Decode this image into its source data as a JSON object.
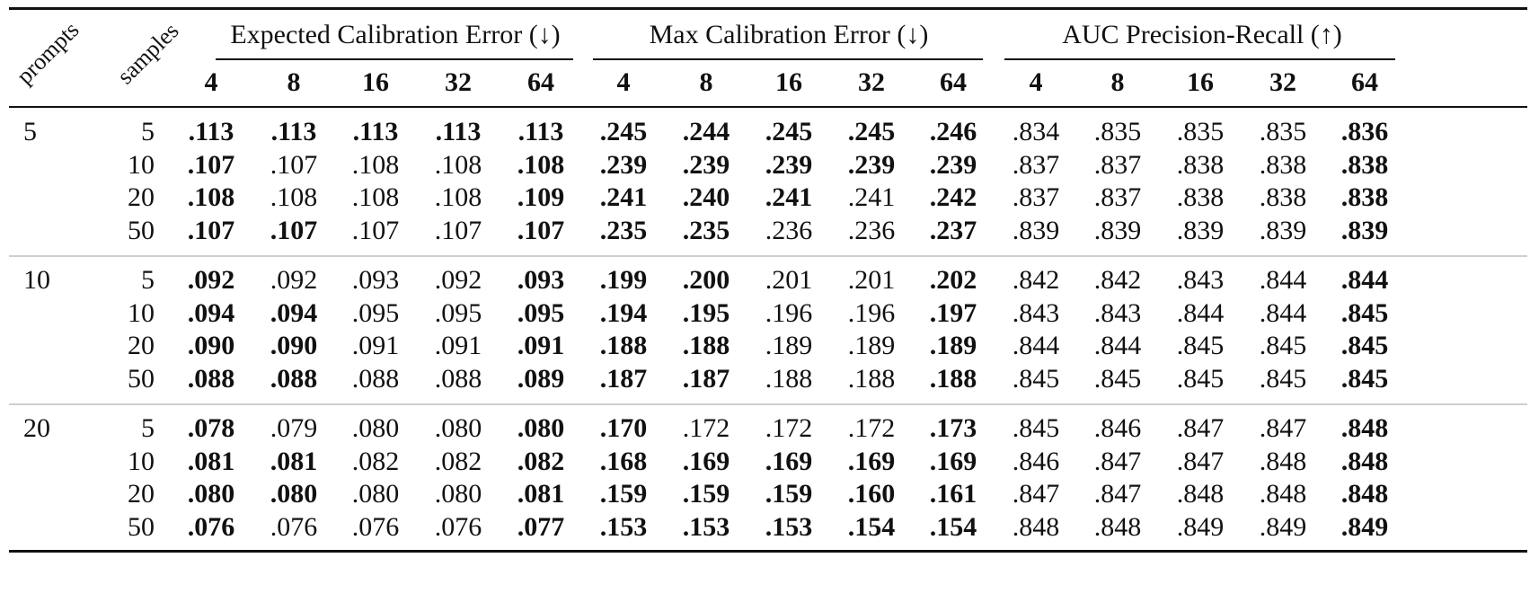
{
  "header": {
    "prompts_label": "prompts",
    "samples_label": "samples",
    "groups": [
      {
        "title": "Expected Calibration Error (↓)",
        "cols": [
          "4",
          "8",
          "16",
          "32",
          "64"
        ]
      },
      {
        "title": "Max Calibration Error (↓)",
        "cols": [
          "4",
          "8",
          "16",
          "32",
          "64"
        ]
      },
      {
        "title": "AUC Precision-Recall (↑)",
        "cols": [
          "4",
          "8",
          "16",
          "32",
          "64"
        ]
      }
    ]
  },
  "blocks": [
    {
      "prompts": "5",
      "rows": [
        {
          "samples": "5",
          "values": [
            ".113",
            ".113",
            ".113",
            ".113",
            ".113",
            ".245",
            ".244",
            ".245",
            ".245",
            ".246",
            ".834",
            ".835",
            ".835",
            ".835",
            ".836"
          ],
          "bold": [
            1,
            1,
            1,
            1,
            1,
            1,
            1,
            1,
            1,
            1,
            0,
            0,
            0,
            0,
            1
          ]
        },
        {
          "samples": "10",
          "values": [
            ".107",
            ".107",
            ".108",
            ".108",
            ".108",
            ".239",
            ".239",
            ".239",
            ".239",
            ".239",
            ".837",
            ".837",
            ".838",
            ".838",
            ".838"
          ],
          "bold": [
            1,
            0,
            0,
            0,
            1,
            1,
            1,
            1,
            1,
            1,
            0,
            0,
            0,
            0,
            1
          ]
        },
        {
          "samples": "20",
          "values": [
            ".108",
            ".108",
            ".108",
            ".108",
            ".109",
            ".241",
            ".240",
            ".241",
            ".241",
            ".242",
            ".837",
            ".837",
            ".838",
            ".838",
            ".838"
          ],
          "bold": [
            1,
            0,
            0,
            0,
            1,
            1,
            1,
            1,
            0,
            1,
            0,
            0,
            0,
            0,
            1
          ]
        },
        {
          "samples": "50",
          "values": [
            ".107",
            ".107",
            ".107",
            ".107",
            ".107",
            ".235",
            ".235",
            ".236",
            ".236",
            ".237",
            ".839",
            ".839",
            ".839",
            ".839",
            ".839"
          ],
          "bold": [
            1,
            1,
            0,
            0,
            1,
            1,
            1,
            0,
            0,
            1,
            0,
            0,
            0,
            0,
            1
          ]
        }
      ]
    },
    {
      "prompts": "10",
      "rows": [
        {
          "samples": "5",
          "values": [
            ".092",
            ".092",
            ".093",
            ".092",
            ".093",
            ".199",
            ".200",
            ".201",
            ".201",
            ".202",
            ".842",
            ".842",
            ".843",
            ".844",
            ".844"
          ],
          "bold": [
            1,
            0,
            0,
            0,
            1,
            1,
            1,
            0,
            0,
            1,
            0,
            0,
            0,
            0,
            1
          ]
        },
        {
          "samples": "10",
          "values": [
            ".094",
            ".094",
            ".095",
            ".095",
            ".095",
            ".194",
            ".195",
            ".196",
            ".196",
            ".197",
            ".843",
            ".843",
            ".844",
            ".844",
            ".845"
          ],
          "bold": [
            1,
            1,
            0,
            0,
            1,
            1,
            1,
            0,
            0,
            1,
            0,
            0,
            0,
            0,
            1
          ]
        },
        {
          "samples": "20",
          "values": [
            ".090",
            ".090",
            ".091",
            ".091",
            ".091",
            ".188",
            ".188",
            ".189",
            ".189",
            ".189",
            ".844",
            ".844",
            ".845",
            ".845",
            ".845"
          ],
          "bold": [
            1,
            1,
            0,
            0,
            1,
            1,
            1,
            0,
            0,
            1,
            0,
            0,
            0,
            0,
            1
          ]
        },
        {
          "samples": "50",
          "values": [
            ".088",
            ".088",
            ".088",
            ".088",
            ".089",
            ".187",
            ".187",
            ".188",
            ".188",
            ".188",
            ".845",
            ".845",
            ".845",
            ".845",
            ".845"
          ],
          "bold": [
            1,
            1,
            0,
            0,
            1,
            1,
            1,
            0,
            0,
            1,
            0,
            0,
            0,
            0,
            1
          ]
        }
      ]
    },
    {
      "prompts": "20",
      "rows": [
        {
          "samples": "5",
          "values": [
            ".078",
            ".079",
            ".080",
            ".080",
            ".080",
            ".170",
            ".172",
            ".172",
            ".172",
            ".173",
            ".845",
            ".846",
            ".847",
            ".847",
            ".848"
          ],
          "bold": [
            1,
            0,
            0,
            0,
            1,
            1,
            0,
            0,
            0,
            1,
            0,
            0,
            0,
            0,
            1
          ]
        },
        {
          "samples": "10",
          "values": [
            ".081",
            ".081",
            ".082",
            ".082",
            ".082",
            ".168",
            ".169",
            ".169",
            ".169",
            ".169",
            ".846",
            ".847",
            ".847",
            ".848",
            ".848"
          ],
          "bold": [
            1,
            1,
            0,
            0,
            1,
            1,
            1,
            1,
            1,
            1,
            0,
            0,
            0,
            0,
            1
          ]
        },
        {
          "samples": "20",
          "values": [
            ".080",
            ".080",
            ".080",
            ".080",
            ".081",
            ".159",
            ".159",
            ".159",
            ".160",
            ".161",
            ".847",
            ".847",
            ".848",
            ".848",
            ".848"
          ],
          "bold": [
            1,
            1,
            0,
            0,
            1,
            1,
            1,
            1,
            1,
            1,
            0,
            0,
            0,
            0,
            1
          ]
        },
        {
          "samples": "50",
          "values": [
            ".076",
            ".076",
            ".076",
            ".076",
            ".077",
            ".153",
            ".153",
            ".153",
            ".154",
            ".154",
            ".848",
            ".848",
            ".849",
            ".849",
            ".849"
          ],
          "bold": [
            1,
            0,
            0,
            0,
            1,
            1,
            1,
            1,
            1,
            1,
            0,
            0,
            0,
            0,
            1
          ]
        }
      ]
    }
  ]
}
